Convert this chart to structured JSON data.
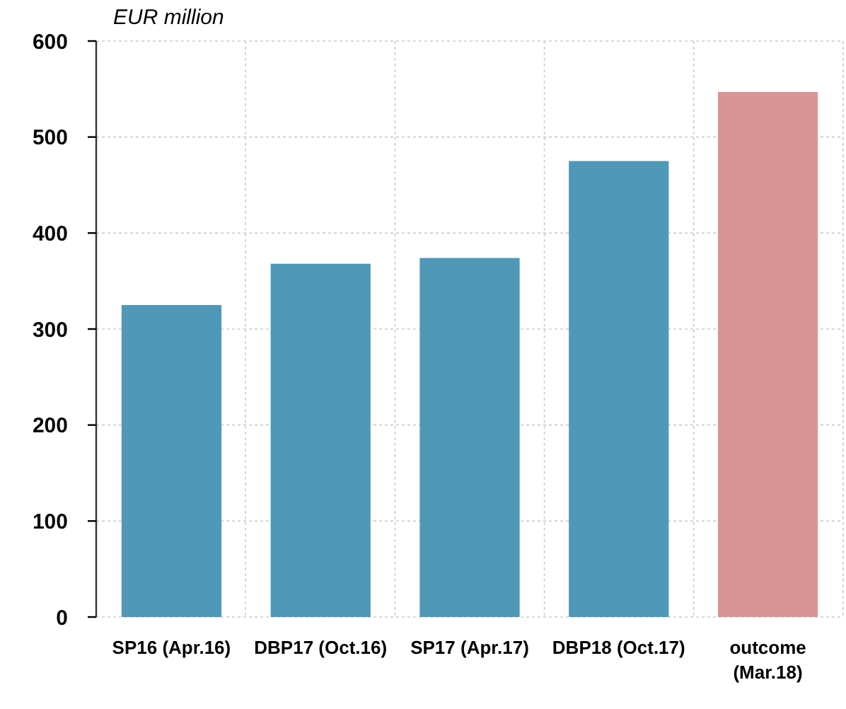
{
  "chart_data": {
    "type": "bar",
    "ylabel": "EUR million",
    "categories": [
      "SP16 (Apr.16)",
      "DBP17 (Oct.16)",
      "SP17 (Apr.17)",
      "DBP18 (Oct.17)",
      "outcome (Mar.18)"
    ],
    "values": [
      325,
      368,
      374,
      475,
      547
    ],
    "colors": [
      "#4f98b8",
      "#4f98b8",
      "#4f98b8",
      "#4f98b8",
      "#d99594"
    ],
    "ylim": [
      0,
      600
    ],
    "yticks": [
      0,
      100,
      200,
      300,
      400,
      500,
      600
    ],
    "grid": true
  }
}
